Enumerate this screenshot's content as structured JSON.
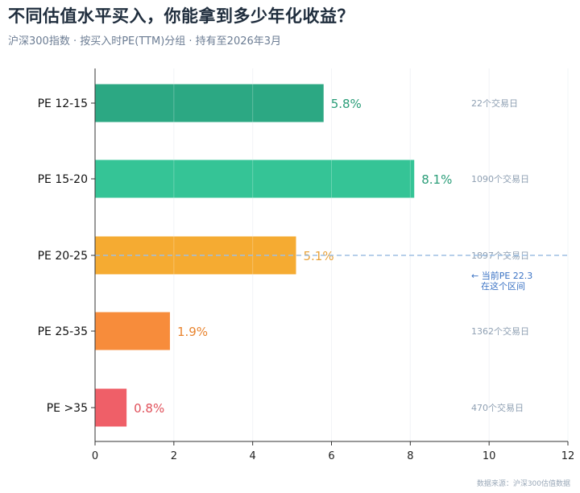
{
  "title": "不同估值水平买入，你能拿到多少年化收益？",
  "subtitle": "沪深300指数 · 按买入时PE(TTM)分组 · 持有至2026年3月",
  "source": "数据来源：沪深300估值数据",
  "chart_data": {
    "type": "bar",
    "orientation": "horizontal",
    "categories": [
      "PE 12-15",
      "PE 15-20",
      "PE 20-25",
      "PE 25-35",
      "PE >35"
    ],
    "values": [
      5.8,
      8.1,
      5.1,
      1.9,
      0.8
    ],
    "value_labels": [
      "5.8%",
      "8.1%",
      "5.1%",
      "1.9%",
      "0.8%"
    ],
    "day_labels": [
      "22个交易日",
      "1090个交易日",
      "1897个交易日",
      "1362个交易日",
      "470个交易日"
    ],
    "colors": [
      "#2ca883",
      "#35c496",
      "#f5ab32",
      "#f78c3b",
      "#ef5f68"
    ],
    "label_colors": [
      "#2a9d78",
      "#2a9d78",
      "#e8a23a",
      "#e8842f",
      "#e0505a"
    ],
    "xlim": [
      0,
      12
    ],
    "xticks": [
      0,
      2,
      4,
      6,
      8,
      10,
      12
    ],
    "grid": "vertical",
    "current_marker": {
      "category": "PE 20-25",
      "line_color": "#9dbfe3",
      "note_lines": [
        "← 当前PE 22.3",
        "在这个区间"
      ]
    }
  }
}
